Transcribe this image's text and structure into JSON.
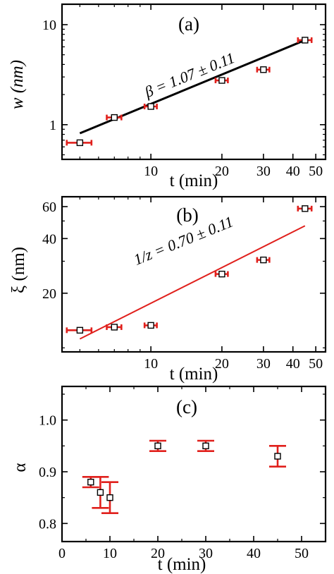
{
  "chart_data": [
    {
      "type": "scatter",
      "panel_label": "(a)",
      "xscale": "log",
      "yscale": "log",
      "xlim": [
        4.2,
        55
      ],
      "ylim": [
        0.45,
        16
      ],
      "xticks": [
        10,
        20,
        30,
        40,
        50
      ],
      "yticks": [
        1,
        10
      ],
      "xlabel": "t (min)",
      "ylabel": "w (nm)",
      "x": [
        5,
        7,
        10,
        20,
        30,
        45
      ],
      "y": [
        0.66,
        1.18,
        1.52,
        2.77,
        3.55,
        7.0
      ],
      "xerr": [
        0.6,
        0.5,
        0.6,
        1.2,
        1.8,
        3.0
      ],
      "fit": {
        "x": [
          5,
          45
        ],
        "y": [
          0.82,
          7.0
        ]
      },
      "annotation": "β = 1.07 ± 0.11",
      "marker_color": "#000000",
      "error_color": "#e0201c",
      "fit_color": "#000000"
    },
    {
      "type": "scatter",
      "panel_label": "(b)",
      "xscale": "log",
      "yscale": "log",
      "xlim": [
        4.2,
        55
      ],
      "ylim": [
        9.5,
        68
      ],
      "xticks": [
        10,
        20,
        30,
        40,
        50
      ],
      "yticks": [
        20,
        40,
        60
      ],
      "xlabel": "t (min)",
      "ylabel": "ξ (nm)",
      "x": [
        5,
        7,
        10,
        20,
        30,
        45
      ],
      "y": [
        12.5,
        13.0,
        13.3,
        25.5,
        30.5,
        58.5
      ],
      "xerr": [
        0.6,
        0.5,
        0.6,
        1.2,
        1.8,
        3.0
      ],
      "fit": {
        "x": [
          5,
          45
        ],
        "y": [
          11.2,
          47.0
        ]
      },
      "annotation": "1/z = 0.70 ± 0.11",
      "marker_color": "#000000",
      "error_color": "#e0201c",
      "fit_color": "#e0201c"
    },
    {
      "type": "scatter",
      "panel_label": "(c)",
      "xlim": [
        0,
        55
      ],
      "ylim": [
        0.765,
        1.065
      ],
      "xticks": [
        0,
        10,
        20,
        30,
        40,
        50
      ],
      "yticks": [
        0.8,
        0.9,
        1.0
      ],
      "yticklabels": [
        "0.8",
        "0.9",
        "1.0"
      ],
      "xlabel": "t (min)",
      "ylabel": "α",
      "x": [
        6,
        8,
        10,
        20,
        30,
        45
      ],
      "y": [
        0.88,
        0.86,
        0.85,
        0.95,
        0.95,
        0.93
      ],
      "yerr": [
        0.01,
        0.03,
        0.03,
        0.01,
        0.01,
        0.02
      ],
      "marker_color": "#000000",
      "error_color": "#e0201c"
    }
  ]
}
